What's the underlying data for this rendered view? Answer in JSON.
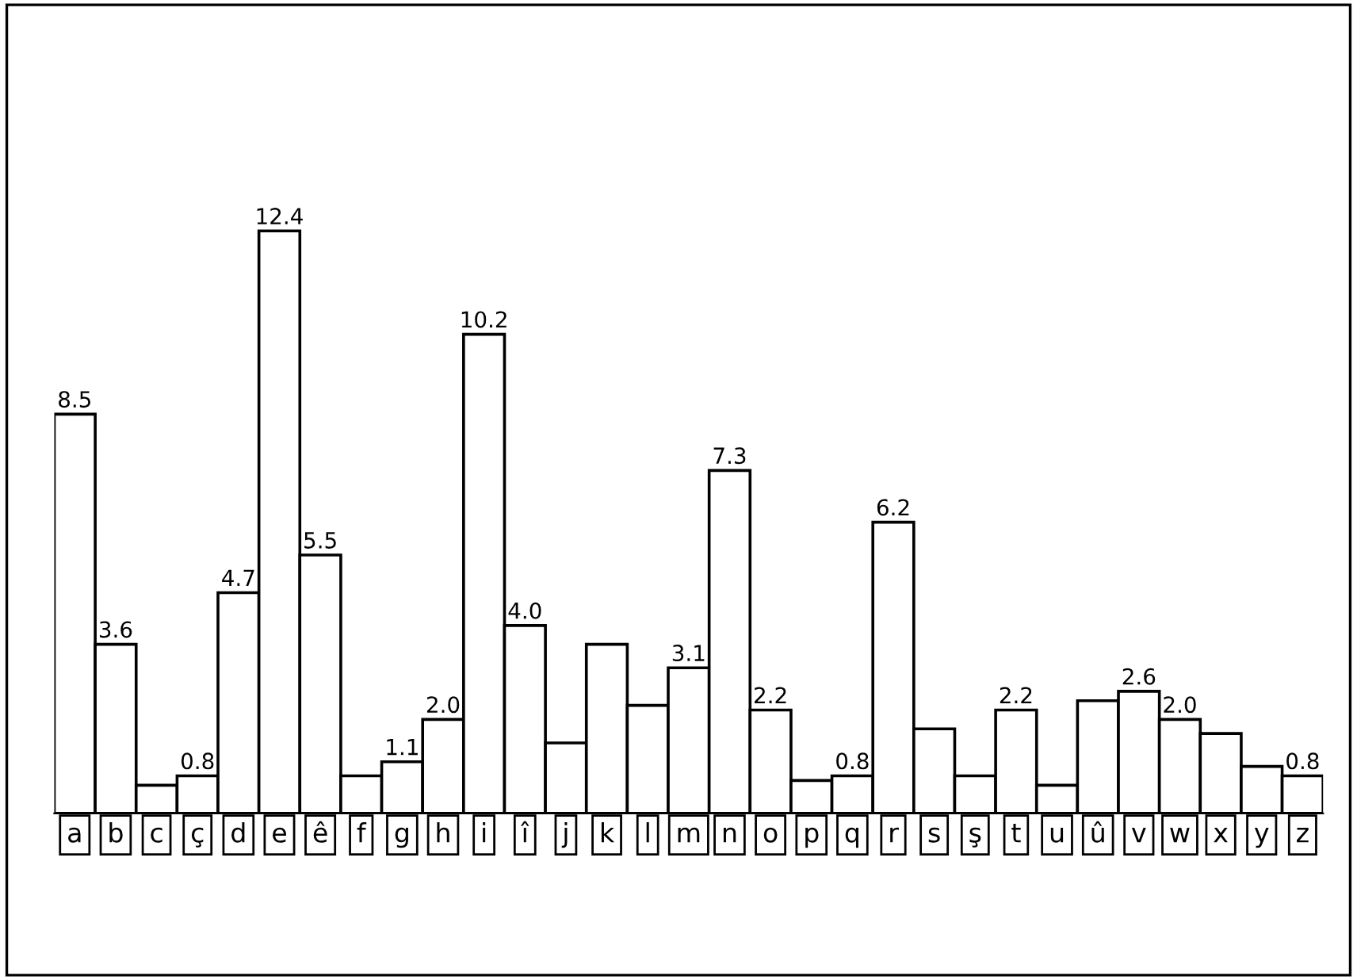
{
  "chart_data": {
    "type": "bar",
    "categories": [
      "a",
      "b",
      "c",
      "ç",
      "d",
      "e",
      "ê",
      "f",
      "g",
      "h",
      "i",
      "î",
      "j",
      "k",
      "l",
      "m",
      "n",
      "o",
      "p",
      "q",
      "r",
      "s",
      "ş",
      "t",
      "u",
      "û",
      "v",
      "w",
      "x",
      "y",
      "z"
    ],
    "values": [
      8.5,
      3.6,
      0.6,
      0.8,
      4.7,
      12.4,
      5.5,
      0.8,
      1.1,
      2.0,
      10.2,
      4.0,
      1.5,
      3.6,
      2.3,
      3.1,
      7.3,
      2.2,
      0.7,
      0.8,
      6.2,
      1.8,
      0.8,
      2.2,
      0.6,
      2.4,
      2.6,
      2.0,
      1.7,
      1.0,
      0.8
    ],
    "value_labels": [
      "8.5",
      "3.6",
      null,
      "0.8",
      "4.7",
      "12.4",
      "5.5",
      null,
      "1.1",
      "2.0",
      "10.2",
      "4.0",
      null,
      null,
      null,
      "3.1",
      "7.3",
      "2.2",
      null,
      "0.8",
      "6.2",
      null,
      null,
      "2.2",
      null,
      null,
      "2.6",
      "2.0",
      null,
      null,
      "0.8"
    ],
    "color": "#ffffff",
    "grid": false,
    "legend": false
  }
}
